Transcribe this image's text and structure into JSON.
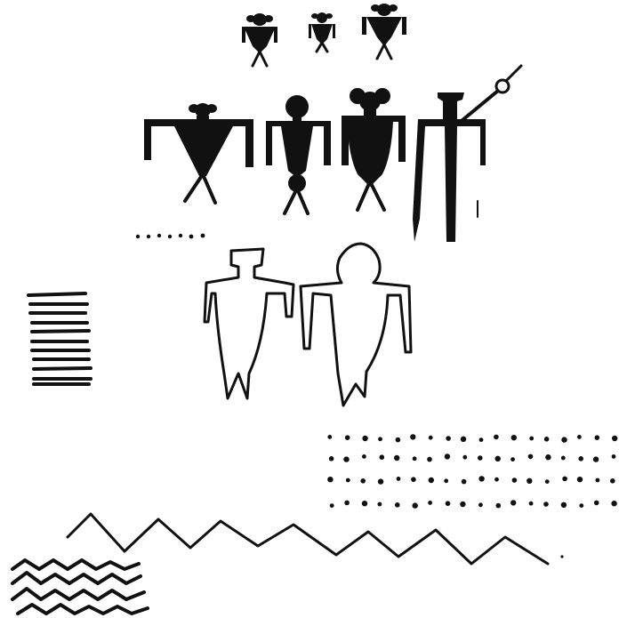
{
  "artwork": {
    "ink_color": "#111111",
    "paper_color": "#ffffff",
    "figures": [
      {
        "name": "small-figure-left",
        "style": "solid"
      },
      {
        "name": "small-figure-middle",
        "style": "solid"
      },
      {
        "name": "small-figure-right",
        "style": "solid"
      },
      {
        "name": "large-triangular-figure",
        "style": "solid"
      },
      {
        "name": "round-head-figure",
        "style": "solid"
      },
      {
        "name": "eared-figure",
        "style": "solid"
      },
      {
        "name": "staff-figure",
        "style": "solid"
      },
      {
        "name": "outline-figure-left",
        "style": "outline"
      },
      {
        "name": "outline-figure-right",
        "style": "outline"
      }
    ],
    "patterns": [
      "dot-row",
      "horizontal-bars-block",
      "dot-grid",
      "zigzag-mountain-line",
      "wavy-lines"
    ]
  }
}
